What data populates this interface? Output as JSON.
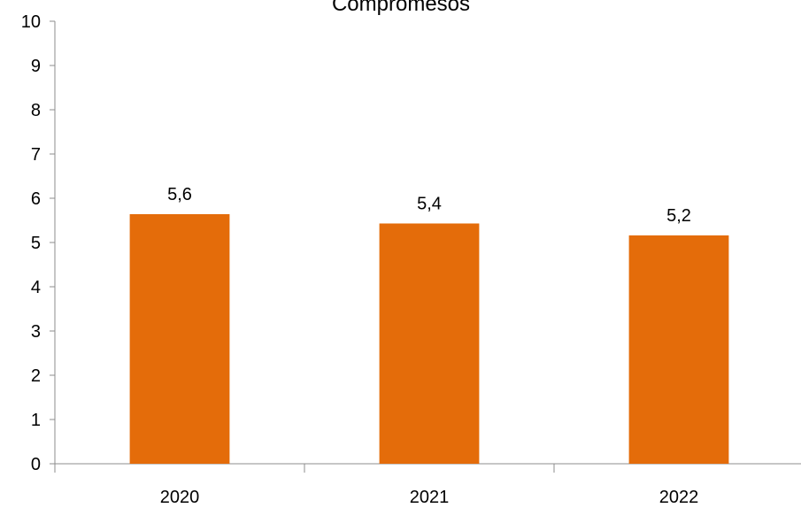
{
  "chart_data": {
    "type": "bar",
    "title": "Compromesos",
    "categories": [
      "2020",
      "2021",
      "2022"
    ],
    "values": [
      5.64,
      5.43,
      5.16
    ],
    "data_labels": [
      "5,6",
      "5,4",
      "5,2"
    ],
    "y_tick_labels": [
      "0",
      "1",
      "2",
      "3",
      "4",
      "5",
      "6",
      "7",
      "8",
      "9",
      "10"
    ],
    "ylim": [
      0,
      10
    ],
    "xlabel": "",
    "ylabel": "",
    "grid": false,
    "bar_color": "#E46C0A"
  }
}
